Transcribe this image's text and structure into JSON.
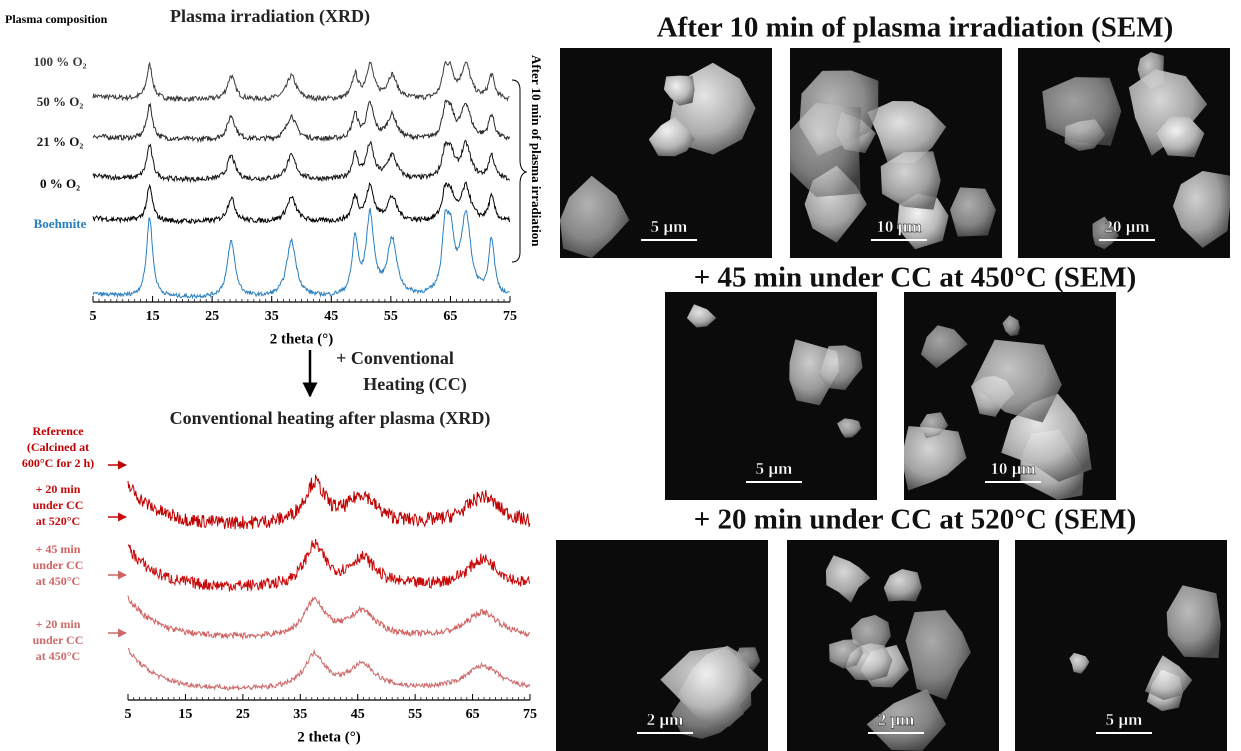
{
  "xrd_plasma": {
    "title": "Plasma irradiation (XRD)",
    "legend_title": "Plasma composition",
    "xlabel": "2 theta (°)",
    "xlim": [
      5,
      75
    ],
    "xticks": [
      5,
      15,
      25,
      35,
      45,
      55,
      65,
      75
    ],
    "bracket_label": "After 10 min of plasma irradiation",
    "peak_positions": [
      14.5,
      28.2,
      38.3,
      49,
      51.5,
      55.2,
      64.1,
      65,
      67.6,
      71.9
    ],
    "traces": [
      {
        "label": "100 % O₂",
        "color": "#3c3c3c"
      },
      {
        "label": "50 % O₂",
        "color": "#2a2a2a"
      },
      {
        "label": "21 % O₂",
        "color": "#151515"
      },
      {
        "label": "0 % O₂",
        "color": "#000000"
      },
      {
        "label": "Boehmite",
        "color": "#2a7fc1"
      }
    ]
  },
  "transition": {
    "lines": [
      "+ Conventional",
      "Heating (CC)"
    ]
  },
  "xrd_heating": {
    "title": "Conventional heating after plasma (XRD)",
    "xlabel": "2 theta (°)",
    "xlim": [
      5,
      75
    ],
    "xticks": [
      5,
      15,
      25,
      35,
      45,
      55,
      65,
      75
    ],
    "peak_positions": [
      37.5,
      45.8,
      66.8
    ],
    "traces": [
      {
        "label_lines": [
          "Reference",
          "(Calcined at",
          "600°C for 2 h)"
        ],
        "color": "#c00000"
      },
      {
        "label_lines": [
          "+ 20 min",
          "under CC",
          "at 520°C"
        ],
        "color": "#c80a0a"
      },
      {
        "label_lines": [
          "+ 45 min",
          "under CC",
          "at 450°C"
        ],
        "color": "#d06262"
      },
      {
        "label_lines": [
          "+ 20 min",
          "under CC",
          "at 450°C"
        ],
        "color": "#cc6a6a"
      }
    ]
  },
  "sem_panels": [
    {
      "title": "After 10 min of plasma irradiation (SEM)",
      "images": [
        {
          "scale": "5 µm"
        },
        {
          "scale": "10 µm"
        },
        {
          "scale": "20 µm"
        }
      ]
    },
    {
      "title": "+ 45 min under CC at 450°C (SEM)",
      "images": [
        {
          "scale": "5 µm"
        },
        {
          "scale": "10 µm"
        }
      ]
    },
    {
      "title": "+ 20 min under CC at 520°C (SEM)",
      "images": [
        {
          "scale": "2 µm"
        },
        {
          "scale": "2 µm"
        },
        {
          "scale": "5 µm"
        }
      ]
    }
  ]
}
